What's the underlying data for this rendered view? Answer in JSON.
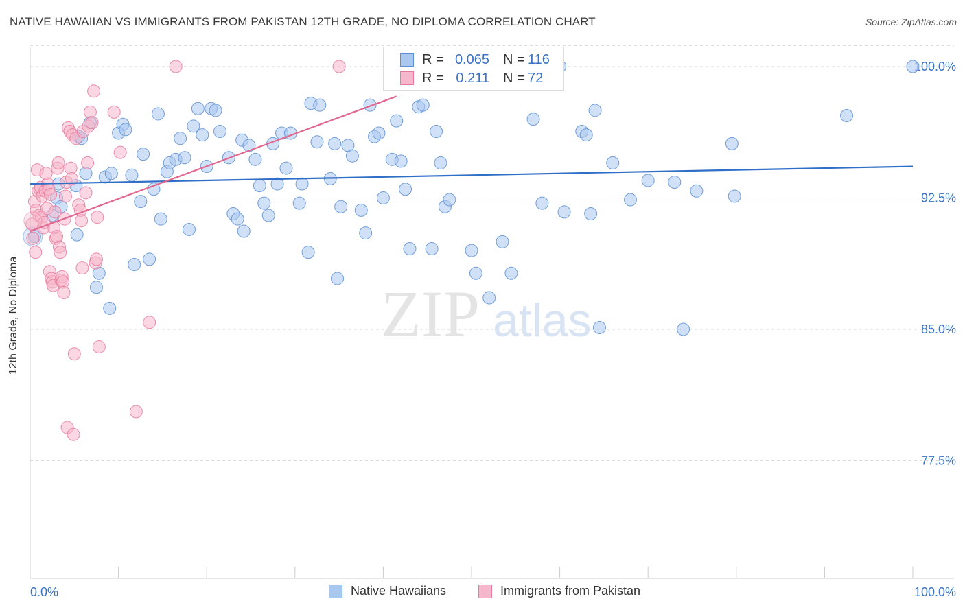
{
  "header": {
    "title": "NATIVE HAWAIIAN VS IMMIGRANTS FROM PAKISTAN 12TH GRADE, NO DIPLOMA CORRELATION CHART",
    "source": "Source: ZipAtlas.com"
  },
  "watermark": {
    "zip": "ZIP",
    "atlas": "atlas"
  },
  "colors": {
    "blue_fill": "#a9c7ef",
    "blue_stroke": "#5b8fd6",
    "blue_line": "#2f6fc7",
    "pink_fill": "#f6b6cb",
    "pink_stroke": "#e7799e",
    "pink_line": "#e2678f",
    "tick_label": "#3a73c6",
    "grid": "#d9d9d9"
  },
  "legend_top": {
    "rows": [
      {
        "r_label": "R =",
        "r_value": "0.065",
        "n_label": "N =",
        "n_value": "116"
      },
      {
        "r_label": "R =",
        "r_value": "0.211",
        "n_label": "N =",
        "n_value": "72"
      }
    ]
  },
  "legend_bottom": {
    "items": [
      "Native Hawaiians",
      "Immigrants from Pakistan"
    ]
  },
  "chart_data": {
    "type": "scatter",
    "title": "NATIVE HAWAIIAN VS IMMIGRANTS FROM PAKISTAN 12TH GRADE, NO DIPLOMA CORRELATION CHART",
    "xlabel": "",
    "ylabel": "12th Grade, No Diploma",
    "x_tick_labels": [
      "0.0%",
      "100.0%"
    ],
    "y_tick_labels": [
      "100.0%",
      "92.5%",
      "85.0%",
      "77.5%"
    ],
    "y_ticks": [
      100.0,
      92.5,
      85.0,
      77.5
    ],
    "xlim": [
      0,
      100
    ],
    "ylim": [
      70.5,
      101.2
    ],
    "grid": true,
    "legend_position": "top-center",
    "series": [
      {
        "name": "Native Hawaiians",
        "trend": {
          "x": [
            0,
            100
          ],
          "y": [
            93.3,
            94.3
          ]
        },
        "points": [
          [
            0.5,
            90.3
          ],
          [
            2.5,
            91.5
          ],
          [
            3.0,
            92.5
          ],
          [
            3.2,
            93.3
          ],
          [
            3.5,
            92.0
          ],
          [
            5.2,
            93.2
          ],
          [
            5.3,
            90.4
          ],
          [
            5.5,
            96.0
          ],
          [
            5.8,
            95.9
          ],
          [
            6.3,
            93.9
          ],
          [
            6.8,
            96.8
          ],
          [
            7.5,
            87.4
          ],
          [
            7.8,
            88.2
          ],
          [
            8.5,
            93.7
          ],
          [
            9.0,
            86.2
          ],
          [
            9.2,
            93.9
          ],
          [
            10.0,
            96.2
          ],
          [
            10.5,
            96.7
          ],
          [
            10.8,
            96.4
          ],
          [
            11.5,
            93.8
          ],
          [
            11.8,
            88.7
          ],
          [
            12.5,
            92.3
          ],
          [
            12.8,
            95.0
          ],
          [
            13.5,
            89.0
          ],
          [
            14.0,
            93.0
          ],
          [
            14.5,
            97.3
          ],
          [
            14.8,
            91.3
          ],
          [
            15.5,
            94.0
          ],
          [
            15.8,
            94.5
          ],
          [
            16.5,
            94.7
          ],
          [
            17.0,
            95.9
          ],
          [
            17.5,
            94.8
          ],
          [
            18.0,
            90.7
          ],
          [
            18.5,
            96.6
          ],
          [
            19.0,
            97.6
          ],
          [
            19.5,
            96.1
          ],
          [
            20.0,
            94.3
          ],
          [
            20.5,
            97.6
          ],
          [
            21.0,
            97.5
          ],
          [
            21.5,
            96.3
          ],
          [
            22.5,
            94.8
          ],
          [
            23.0,
            91.6
          ],
          [
            23.5,
            91.3
          ],
          [
            24.0,
            95.8
          ],
          [
            24.2,
            90.6
          ],
          [
            24.8,
            95.5
          ],
          [
            25.5,
            94.7
          ],
          [
            26.0,
            93.2
          ],
          [
            26.5,
            92.2
          ],
          [
            27.0,
            91.5
          ],
          [
            27.5,
            95.6
          ],
          [
            28.0,
            93.3
          ],
          [
            28.5,
            96.2
          ],
          [
            29.0,
            94.2
          ],
          [
            29.5,
            96.2
          ],
          [
            30.5,
            92.2
          ],
          [
            30.8,
            93.3
          ],
          [
            31.5,
            89.4
          ],
          [
            31.8,
            97.9
          ],
          [
            32.5,
            95.7
          ],
          [
            32.8,
            97.8
          ],
          [
            34.0,
            93.6
          ],
          [
            34.5,
            95.6
          ],
          [
            34.8,
            87.9
          ],
          [
            35.2,
            92.0
          ],
          [
            36.0,
            95.5
          ],
          [
            36.5,
            94.9
          ],
          [
            37.5,
            91.8
          ],
          [
            38.0,
            90.5
          ],
          [
            38.5,
            97.8
          ],
          [
            39.0,
            96.0
          ],
          [
            39.5,
            96.2
          ],
          [
            40.0,
            92.5
          ],
          [
            41.0,
            94.7
          ],
          [
            41.5,
            96.9
          ],
          [
            41.8,
            100.0
          ],
          [
            42.0,
            94.6
          ],
          [
            42.5,
            93.0
          ],
          [
            43.0,
            89.6
          ],
          [
            44.0,
            97.7
          ],
          [
            44.5,
            97.8
          ],
          [
            45.5,
            89.6
          ],
          [
            46.0,
            96.3
          ],
          [
            46.5,
            94.5
          ],
          [
            47.0,
            92.0
          ],
          [
            47.5,
            92.4
          ],
          [
            50.0,
            89.5
          ],
          [
            50.5,
            88.2
          ],
          [
            52.0,
            86.8
          ],
          [
            53.5,
            90.0
          ],
          [
            54.5,
            88.2
          ],
          [
            57.0,
            97.0
          ],
          [
            58.0,
            92.2
          ],
          [
            58.5,
            100.0
          ],
          [
            60.0,
            100.0
          ],
          [
            60.5,
            91.7
          ],
          [
            62.5,
            96.3
          ],
          [
            63.0,
            96.1
          ],
          [
            63.5,
            91.6
          ],
          [
            64.0,
            97.5
          ],
          [
            64.5,
            85.1
          ],
          [
            66.0,
            94.5
          ],
          [
            68.0,
            92.4
          ],
          [
            70.0,
            93.5
          ],
          [
            73.0,
            93.4
          ],
          [
            74.0,
            85.0
          ],
          [
            75.5,
            92.9
          ],
          [
            79.5,
            95.6
          ],
          [
            79.8,
            92.6
          ],
          [
            92.5,
            97.2
          ],
          [
            100.0,
            100.0
          ]
        ]
      },
      {
        "name": "Immigrants from Pakistan",
        "trend": {
          "x": [
            0,
            41.5
          ],
          "y": [
            90.6,
            98.3
          ]
        },
        "points": [
          [
            0.2,
            91.0
          ],
          [
            0.3,
            90.2
          ],
          [
            0.5,
            92.3
          ],
          [
            0.6,
            89.4
          ],
          [
            0.7,
            91.8
          ],
          [
            0.8,
            94.1
          ],
          [
            0.9,
            92.9
          ],
          [
            1.0,
            91.5
          ],
          [
            1.1,
            93.0
          ],
          [
            1.2,
            93.1
          ],
          [
            1.3,
            91.4
          ],
          [
            1.4,
            92.6
          ],
          [
            1.5,
            90.8
          ],
          [
            1.6,
            91.1
          ],
          [
            1.7,
            92.9
          ],
          [
            1.8,
            93.9
          ],
          [
            1.9,
            91.9
          ],
          [
            2.0,
            93.3
          ],
          [
            2.1,
            93.0
          ],
          [
            2.2,
            88.3
          ],
          [
            2.3,
            92.7
          ],
          [
            2.4,
            87.9
          ],
          [
            2.5,
            87.7
          ],
          [
            2.6,
            87.5
          ],
          [
            2.7,
            90.8
          ],
          [
            2.8,
            91.7
          ],
          [
            2.9,
            90.2
          ],
          [
            3.0,
            90.3
          ],
          [
            3.1,
            94.2
          ],
          [
            3.2,
            94.5
          ],
          [
            3.3,
            89.7
          ],
          [
            3.4,
            89.4
          ],
          [
            3.5,
            87.8
          ],
          [
            3.6,
            88.0
          ],
          [
            3.7,
            87.7
          ],
          [
            3.8,
            87.1
          ],
          [
            3.9,
            91.3
          ],
          [
            4.0,
            92.6
          ],
          [
            4.1,
            93.4
          ],
          [
            4.2,
            79.4
          ],
          [
            4.3,
            96.5
          ],
          [
            4.5,
            96.3
          ],
          [
            4.6,
            94.2
          ],
          [
            4.7,
            93.6
          ],
          [
            4.8,
            96.1
          ],
          [
            4.9,
            79.0
          ],
          [
            5.0,
            83.6
          ],
          [
            5.2,
            95.9
          ],
          [
            5.5,
            92.1
          ],
          [
            5.7,
            91.8
          ],
          [
            5.8,
            91.2
          ],
          [
            5.9,
            88.5
          ],
          [
            6.0,
            96.3
          ],
          [
            6.3,
            92.8
          ],
          [
            6.5,
            94.5
          ],
          [
            6.6,
            96.6
          ],
          [
            6.8,
            97.4
          ],
          [
            7.0,
            96.8
          ],
          [
            7.2,
            98.6
          ],
          [
            7.4,
            88.8
          ],
          [
            7.5,
            89.0
          ],
          [
            7.6,
            91.4
          ],
          [
            7.8,
            84.0
          ],
          [
            9.5,
            97.4
          ],
          [
            10.2,
            95.1
          ],
          [
            12.0,
            80.3
          ],
          [
            13.5,
            85.4
          ],
          [
            16.5,
            100.0
          ],
          [
            35.0,
            100.0
          ]
        ]
      }
    ]
  }
}
